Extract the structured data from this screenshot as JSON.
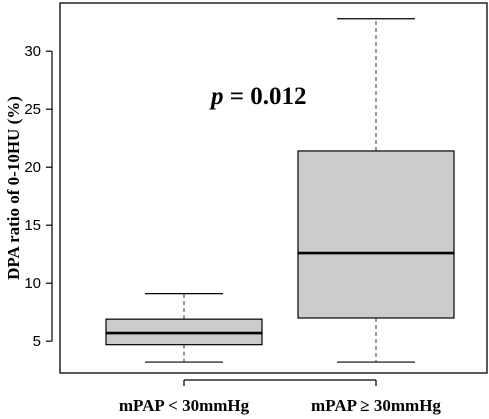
{
  "chart_data": {
    "type": "boxplot",
    "title": "",
    "xlabel": "",
    "ylabel": "DPA ratio of 0-10HU (%)",
    "ylim": [
      2,
      34
    ],
    "yticks": [
      5,
      10,
      15,
      20,
      25,
      30
    ],
    "categories": [
      "mPAP < 30mmHg",
      "mPAP ≥ 30mmHg"
    ],
    "boxes": [
      {
        "whisker_low": 3.2,
        "q1": 4.7,
        "median": 5.7,
        "q3": 6.9,
        "whisker_high": 9.1
      },
      {
        "whisker_low": 3.2,
        "q1": 7.0,
        "median": 12.6,
        "q3": 21.4,
        "whisker_high": 32.8
      }
    ],
    "annotation": {
      "p_symbol": "p",
      "p_text": " = 0.012"
    },
    "box_fill": "#cccccc",
    "grid": false
  }
}
